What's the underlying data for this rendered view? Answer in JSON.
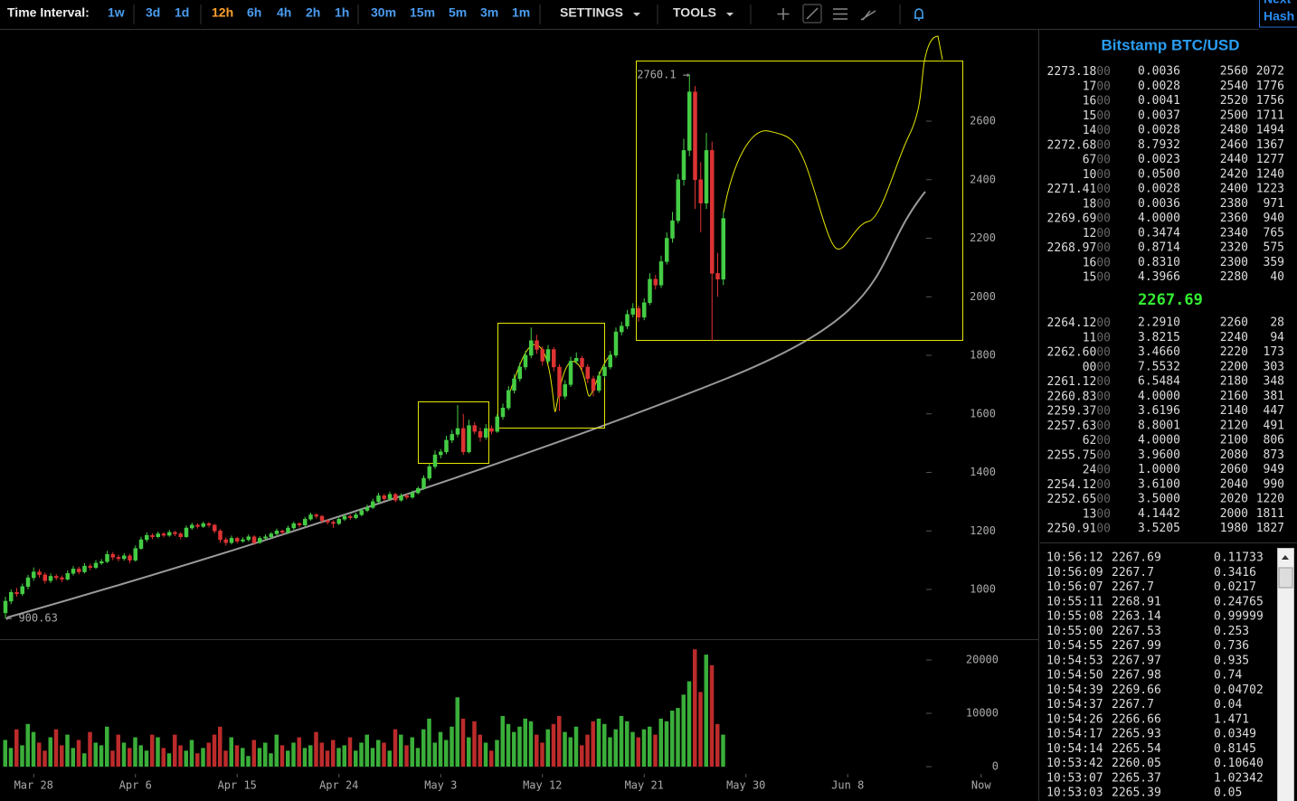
{
  "toolbar": {
    "label": "Time Interval:",
    "intervals": [
      "1w",
      "3d",
      "1d",
      "12h",
      "6h",
      "4h",
      "2h",
      "1h",
      "30m",
      "15m",
      "5m",
      "3m",
      "1m"
    ],
    "selected_interval": 3,
    "settings": "SETTINGS",
    "tools": "TOOLS",
    "corner": [
      "Next",
      "Hash"
    ]
  },
  "chart": {
    "type": "candlestick",
    "colors": {
      "up": "#44cc44",
      "down": "#dd3333"
    },
    "high_label": "2760.1 →",
    "low_label": "← 900.63",
    "xlim": [
      -0.96,
      182.72
    ],
    "xticks": [
      {
        "value": 5,
        "label": "Mar 28"
      },
      {
        "value": 23,
        "label": "Apr 6"
      },
      {
        "value": 41,
        "label": "Apr 15"
      },
      {
        "value": 59,
        "label": "Apr 24"
      },
      {
        "value": 77,
        "label": "May 3"
      },
      {
        "value": 95,
        "label": "May 12"
      },
      {
        "value": 113,
        "label": "May 21"
      },
      {
        "value": 131,
        "label": "May 30"
      },
      {
        "value": 149,
        "label": "Jun 8"
      },
      {
        "value": 172.6,
        "label": "Now"
      }
    ],
    "ylim": [
      833.2,
      2915.1
    ],
    "yticks": [
      1000,
      1200,
      1400,
      1600,
      1800,
      2000,
      2200,
      2400,
      2600
    ],
    "volume_ylim": [
      -1695,
      23729
    ],
    "volume_ticks": [
      0,
      10000,
      20000
    ],
    "candles": [
      [
        920,
        975,
        900.63,
        960
      ],
      [
        960,
        1000,
        950,
        990
      ],
      [
        990,
        1005,
        975,
        985
      ],
      [
        985,
        1020,
        978,
        1010
      ],
      [
        1010,
        1050,
        1000,
        1040
      ],
      [
        1040,
        1075,
        1030,
        1060
      ],
      [
        1060,
        1070,
        1040,
        1050
      ],
      [
        1050,
        1058,
        1020,
        1030
      ],
      [
        1030,
        1055,
        1022,
        1045
      ],
      [
        1045,
        1052,
        1032,
        1040
      ],
      [
        1040,
        1048,
        1025,
        1035
      ],
      [
        1035,
        1065,
        1030,
        1055
      ],
      [
        1055,
        1080,
        1048,
        1070
      ],
      [
        1070,
        1078,
        1052,
        1060
      ],
      [
        1060,
        1090,
        1055,
        1080
      ],
      [
        1080,
        1088,
        1066,
        1075
      ],
      [
        1075,
        1100,
        1070,
        1090
      ],
      [
        1090,
        1104,
        1084,
        1095
      ],
      [
        1095,
        1132,
        1090,
        1120
      ],
      [
        1120,
        1128,
        1100,
        1110
      ],
      [
        1110,
        1118,
        1096,
        1105
      ],
      [
        1105,
        1124,
        1098,
        1115
      ],
      [
        1115,
        1122,
        1090,
        1100
      ],
      [
        1100,
        1150,
        1095,
        1140
      ],
      [
        1140,
        1180,
        1135,
        1170
      ],
      [
        1170,
        1195,
        1162,
        1185
      ],
      [
        1185,
        1192,
        1172,
        1180
      ],
      [
        1180,
        1198,
        1175,
        1190
      ],
      [
        1190,
        1196,
        1178,
        1185
      ],
      [
        1185,
        1203,
        1180,
        1195
      ],
      [
        1195,
        1200,
        1182,
        1190
      ],
      [
        1190,
        1196,
        1172,
        1180
      ],
      [
        1180,
        1218,
        1176,
        1210
      ],
      [
        1210,
        1228,
        1204,
        1220
      ],
      [
        1220,
        1226,
        1208,
        1215
      ],
      [
        1215,
        1232,
        1210,
        1225
      ],
      [
        1225,
        1230,
        1212,
        1220
      ],
      [
        1220,
        1224,
        1192,
        1200
      ],
      [
        1200,
        1206,
        1160,
        1170
      ],
      [
        1170,
        1178,
        1150,
        1160
      ],
      [
        1160,
        1184,
        1154,
        1175
      ],
      [
        1175,
        1180,
        1158,
        1165
      ],
      [
        1165,
        1178,
        1160,
        1170
      ],
      [
        1170,
        1188,
        1164,
        1180
      ],
      [
        1180,
        1185,
        1152,
        1160
      ],
      [
        1160,
        1182,
        1156,
        1175
      ],
      [
        1175,
        1188,
        1170,
        1180
      ],
      [
        1180,
        1196,
        1174,
        1190
      ],
      [
        1190,
        1208,
        1184,
        1200
      ],
      [
        1200,
        1205,
        1188,
        1195
      ],
      [
        1195,
        1218,
        1190,
        1210
      ],
      [
        1210,
        1232,
        1204,
        1225
      ],
      [
        1225,
        1230,
        1212,
        1220
      ],
      [
        1220,
        1248,
        1215,
        1240
      ],
      [
        1240,
        1262,
        1235,
        1255
      ],
      [
        1255,
        1260,
        1242,
        1250
      ],
      [
        1250,
        1255,
        1226,
        1235
      ],
      [
        1235,
        1240,
        1222,
        1230
      ],
      [
        1230,
        1236,
        1210,
        1225
      ],
      [
        1225,
        1248,
        1220,
        1240
      ],
      [
        1240,
        1258,
        1234,
        1250
      ],
      [
        1250,
        1256,
        1238,
        1245
      ],
      [
        1245,
        1262,
        1240,
        1255
      ],
      [
        1255,
        1278,
        1250,
        1270
      ],
      [
        1270,
        1290,
        1264,
        1280
      ],
      [
        1280,
        1310,
        1275,
        1300
      ],
      [
        1300,
        1330,
        1294,
        1320
      ],
      [
        1320,
        1326,
        1302,
        1310
      ],
      [
        1310,
        1334,
        1304,
        1325
      ],
      [
        1325,
        1330,
        1298,
        1305
      ],
      [
        1305,
        1328,
        1300,
        1320
      ],
      [
        1320,
        1326,
        1308,
        1315
      ],
      [
        1315,
        1338,
        1310,
        1330
      ],
      [
        1330,
        1352,
        1325,
        1345
      ],
      [
        1345,
        1390,
        1340,
        1380
      ],
      [
        1380,
        1430,
        1372,
        1420
      ],
      [
        1420,
        1475,
        1412,
        1460
      ],
      [
        1460,
        1480,
        1448,
        1470
      ],
      [
        1470,
        1525,
        1462,
        1510
      ],
      [
        1510,
        1545,
        1500,
        1530
      ],
      [
        1530,
        1630,
        1520,
        1550
      ],
      [
        1550,
        1600,
        1460,
        1470
      ],
      [
        1470,
        1580,
        1465,
        1560
      ],
      [
        1560,
        1572,
        1530,
        1540
      ],
      [
        1540,
        1552,
        1505,
        1520
      ],
      [
        1520,
        1565,
        1512,
        1550
      ],
      [
        1550,
        1560,
        1530,
        1540
      ],
      [
        1540,
        1600,
        1535,
        1590
      ],
      [
        1590,
        1635,
        1580,
        1620
      ],
      [
        1620,
        1695,
        1612,
        1680
      ],
      [
        1680,
        1735,
        1670,
        1720
      ],
      [
        1720,
        1775,
        1710,
        1760
      ],
      [
        1760,
        1815,
        1750,
        1800
      ],
      [
        1800,
        1895,
        1790,
        1850
      ],
      [
        1850,
        1870,
        1805,
        1820
      ],
      [
        1820,
        1830,
        1765,
        1780
      ],
      [
        1780,
        1835,
        1772,
        1820
      ],
      [
        1820,
        1828,
        1745,
        1760
      ],
      [
        1760,
        1770,
        1610,
        1660
      ],
      [
        1660,
        1715,
        1650,
        1700
      ],
      [
        1700,
        1795,
        1692,
        1780
      ],
      [
        1780,
        1810,
        1770,
        1790
      ],
      [
        1790,
        1798,
        1745,
        1760
      ],
      [
        1760,
        1770,
        1705,
        1720
      ],
      [
        1720,
        1730,
        1660,
        1680
      ],
      [
        1680,
        1745,
        1672,
        1730
      ],
      [
        1730,
        1772,
        1722,
        1760
      ],
      [
        1760,
        1815,
        1752,
        1800
      ],
      [
        1800,
        1895,
        1792,
        1880
      ],
      [
        1880,
        1915,
        1868,
        1900
      ],
      [
        1900,
        1955,
        1890,
        1940
      ],
      [
        1940,
        1978,
        1930,
        1960
      ],
      [
        1960,
        1970,
        1915,
        1930
      ],
      [
        1930,
        1995,
        1920,
        1980
      ],
      [
        1980,
        2080,
        1972,
        2060
      ],
      [
        2060,
        2075,
        2025,
        2040
      ],
      [
        2040,
        2140,
        2030,
        2120
      ],
      [
        2120,
        2220,
        2110,
        2200
      ],
      [
        2200,
        2290,
        2185,
        2260
      ],
      [
        2260,
        2420,
        2250,
        2400
      ],
      [
        2400,
        2540,
        2380,
        2500
      ],
      [
        2500,
        2760.1,
        2480,
        2700
      ],
      [
        2700,
        2720,
        2300,
        2400
      ],
      [
        2400,
        2460,
        2220,
        2320
      ],
      [
        2320,
        2560,
        2300,
        2500
      ],
      [
        2500,
        2530,
        1850,
        2080
      ],
      [
        2080,
        2150,
        2000,
        2060
      ],
      [
        2060,
        2290,
        2040,
        2267.69
      ]
    ],
    "volumes": [
      5000,
      3500,
      7000,
      4000,
      8000,
      6500,
      4500,
      3000,
      5500,
      7000,
      4000,
      6000,
      3500,
      5000,
      2500,
      6500,
      4500,
      4000,
      7500,
      3000,
      6000,
      4500,
      3500,
      5500,
      4000,
      3000,
      6000,
      5500,
      3500,
      2500,
      6000,
      4000,
      3000,
      5000,
      2500,
      3500,
      4500,
      6000,
      7500,
      3000,
      5500,
      4000,
      3500,
      2000,
      5000,
      3500,
      4500,
      2500,
      6000,
      4000,
      3000,
      4500,
      5500,
      3500,
      4000,
      6500,
      4500,
      3000,
      5000,
      3500,
      4000,
      5500,
      3000,
      4500,
      6000,
      3500,
      5000,
      4500,
      3000,
      7000,
      6000,
      4000,
      5500,
      3500,
      7000,
      9000,
      4500,
      6500,
      5000,
      7500,
      13000,
      9000,
      5500,
      8500,
      6000,
      4500,
      3000,
      5000,
      9500,
      8000,
      6500,
      7500,
      9000,
      8500,
      6000,
      4500,
      7000,
      8000,
      9500,
      6500,
      5500,
      7500,
      4000,
      6000,
      8500,
      9000,
      8000,
      5500,
      7000,
      9500,
      8500,
      6500,
      5500,
      7000,
      7500,
      6000,
      9000,
      8500,
      10500,
      11000,
      13500,
      16000,
      22000,
      14000,
      21000,
      19000,
      8000,
      6000
    ]
  },
  "sidebar": {
    "title": "Bitstamp BTC/USD",
    "last_price": "2267.69",
    "asks": [
      [
        "2273.18",
        "00",
        "0.0036",
        "2560",
        "2072"
      ],
      [
        "17",
        "00",
        "0.0028",
        "2540",
        "1776"
      ],
      [
        "16",
        "00",
        "0.0041",
        "2520",
        "1756"
      ],
      [
        "15",
        "00",
        "0.0037",
        "2500",
        "1711"
      ],
      [
        "14",
        "00",
        "0.0028",
        "2480",
        "1494"
      ],
      [
        "2272.68",
        "00",
        "8.7932",
        "2460",
        "1367"
      ],
      [
        "67",
        "00",
        "0.0023",
        "2440",
        "1277"
      ],
      [
        "10",
        "00",
        "0.0500",
        "2420",
        "1240"
      ],
      [
        "2271.41",
        "00",
        "0.0028",
        "2400",
        "1223"
      ],
      [
        "18",
        "00",
        "0.0036",
        "2380",
        "971"
      ],
      [
        "2269.69",
        "00",
        "4.0000",
        "2360",
        "940"
      ],
      [
        "12",
        "00",
        "0.3474",
        "2340",
        "765"
      ],
      [
        "2268.97",
        "00",
        "0.8714",
        "2320",
        "575"
      ],
      [
        "16",
        "00",
        "0.8310",
        "2300",
        "359"
      ],
      [
        "15",
        "00",
        "4.3966",
        "2280",
        "40"
      ]
    ],
    "bids": [
      [
        "2264.12",
        "00",
        "2.2910",
        "2260",
        "28"
      ],
      [
        "11",
        "00",
        "3.8215",
        "2240",
        "94"
      ],
      [
        "2262.60",
        "00",
        "3.4660",
        "2220",
        "173"
      ],
      [
        "00",
        "00",
        "7.5532",
        "2200",
        "303"
      ],
      [
        "2261.12",
        "00",
        "6.5484",
        "2180",
        "348"
      ],
      [
        "2260.83",
        "00",
        "4.0000",
        "2160",
        "381"
      ],
      [
        "2259.37",
        "00",
        "3.6196",
        "2140",
        "447"
      ],
      [
        "2257.63",
        "00",
        "8.8001",
        "2120",
        "491"
      ],
      [
        "62",
        "00",
        "4.0000",
        "2100",
        "806"
      ],
      [
        "2255.75",
        "00",
        "3.9600",
        "2080",
        "873"
      ],
      [
        "24",
        "00",
        "1.0000",
        "2060",
        "949"
      ],
      [
        "2254.12",
        "00",
        "3.6100",
        "2040",
        "990"
      ],
      [
        "2252.65",
        "00",
        "3.5000",
        "2020",
        "1220"
      ],
      [
        "13",
        "00",
        "4.1442",
        "2000",
        "1811"
      ],
      [
        "2250.91",
        "00",
        "3.5205",
        "1980",
        "1827"
      ]
    ],
    "trades": [
      [
        "10:56:12",
        "2267.69",
        "0.11733",
        "up"
      ],
      [
        "10:56:09",
        "2267.7",
        "0.3416",
        "up"
      ],
      [
        "10:56:07",
        "2267.7",
        "0.0217",
        "up"
      ],
      [
        "10:55:11",
        "2268.91",
        "0.24765",
        "up"
      ],
      [
        "10:55:08",
        "2263.14",
        "0.99999",
        "down"
      ],
      [
        "10:55:00",
        "2267.53",
        "0.253",
        "up"
      ],
      [
        "10:54:55",
        "2267.99",
        "0.736",
        "up"
      ],
      [
        "10:54:53",
        "2267.97",
        "0.935",
        "up"
      ],
      [
        "10:54:50",
        "2267.98",
        "0.74",
        "up"
      ],
      [
        "10:54:39",
        "2269.66",
        "0.04702",
        "up"
      ],
      [
        "10:54:37",
        "2267.7",
        "0.04",
        "up"
      ],
      [
        "10:54:26",
        "2266.66",
        "1.471",
        "up"
      ],
      [
        "10:54:17",
        "2265.93",
        "0.0349",
        "up"
      ],
      [
        "10:54:14",
        "2265.54",
        "0.8145",
        "up"
      ],
      [
        "10:53:42",
        "2260.05",
        "0.10640",
        "down"
      ],
      [
        "10:53:07",
        "2265.37",
        "1.02342",
        "up"
      ],
      [
        "10:53:03",
        "2265.39",
        "0.05",
        "up"
      ]
    ]
  }
}
